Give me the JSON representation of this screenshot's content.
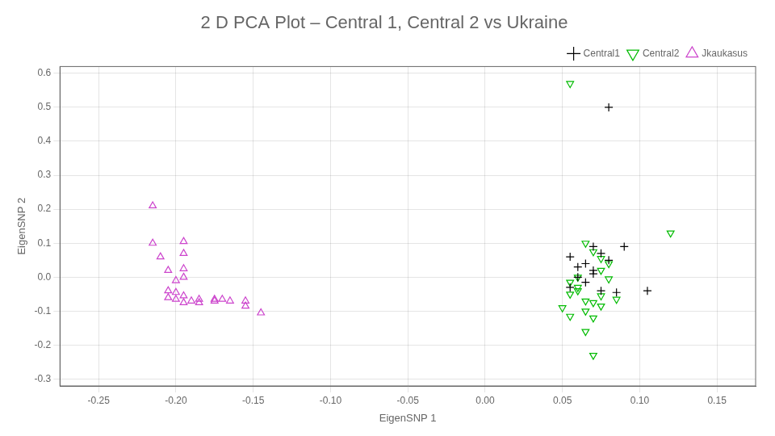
{
  "chart_data": {
    "type": "scatter",
    "title": "2 D PCA Plot – Central 1, Central 2 vs Ukraine",
    "xlabel": "EigenSNP 1",
    "ylabel": "EigenSNP 2",
    "xlim": [
      -0.275,
      0.175
    ],
    "ylim": [
      -0.32,
      0.62
    ],
    "xticks": [
      -0.25,
      {
        "value": -0.2,
        "label": "-0.20"
      },
      -0.15,
      {
        "value": -0.1,
        "label": "-0.10"
      },
      -0.05,
      {
        "value": 0.0,
        "label": "0.00"
      },
      0.05,
      {
        "value": 0.1,
        "label": "0.10"
      },
      0.15
    ],
    "yticks": [
      -0.3,
      -0.2,
      -0.1,
      {
        "value": 0.0,
        "label": "0.0"
      },
      0.1,
      0.2,
      0.3,
      0.4,
      0.5,
      0.6
    ],
    "grid": true,
    "legend": "upper right",
    "series": [
      {
        "name": "Central1",
        "color": "black",
        "marker": "plus",
        "x": [
          0.07,
          0.075,
          0.08,
          0.065,
          0.07,
          0.06,
          0.065,
          0.055,
          0.075,
          0.085,
          0.09,
          0.105,
          0.07,
          0.06,
          0.055,
          0.08
        ],
        "values": [
          0.09,
          0.07,
          0.05,
          0.04,
          0.02,
          0.0,
          -0.015,
          -0.03,
          -0.04,
          -0.045,
          0.09,
          -0.04,
          0.01,
          0.03,
          0.06,
          0.5
        ]
      },
      {
        "name": "Central2",
        "color": "#00bb00",
        "marker": "triangle_down",
        "x": [
          0.055,
          0.12,
          0.065,
          0.07,
          0.075,
          0.08,
          0.075,
          0.06,
          0.055,
          0.06,
          0.055,
          0.065,
          0.07,
          0.075,
          0.065,
          0.055,
          0.07,
          0.065,
          0.07,
          0.05,
          0.085,
          0.06,
          0.08,
          0.075
        ],
        "values": [
          0.57,
          0.13,
          0.1,
          0.075,
          0.055,
          0.04,
          0.02,
          0.0,
          -0.015,
          -0.03,
          -0.05,
          -0.07,
          -0.075,
          -0.085,
          -0.1,
          -0.115,
          -0.12,
          -0.16,
          -0.23,
          -0.09,
          -0.065,
          -0.04,
          -0.005,
          -0.055
        ]
      },
      {
        "name": "Jkaukasus",
        "color": "#cc44cc",
        "marker": "triangle_up",
        "x": [
          -0.215,
          -0.215,
          -0.195,
          -0.195,
          -0.21,
          -0.195,
          -0.205,
          -0.195,
          -0.2,
          -0.205,
          -0.2,
          -0.195,
          -0.205,
          -0.2,
          -0.19,
          -0.185,
          -0.195,
          -0.185,
          -0.175,
          -0.17,
          -0.175,
          -0.165,
          -0.155,
          -0.155,
          -0.145
        ],
        "values": [
          0.21,
          0.1,
          0.105,
          0.07,
          0.06,
          0.025,
          0.02,
          -0.0,
          -0.01,
          -0.04,
          -0.045,
          -0.055,
          -0.06,
          -0.065,
          -0.07,
          -0.065,
          -0.075,
          -0.075,
          -0.065,
          -0.065,
          -0.07,
          -0.07,
          -0.07,
          -0.085,
          -0.105
        ]
      }
    ]
  }
}
